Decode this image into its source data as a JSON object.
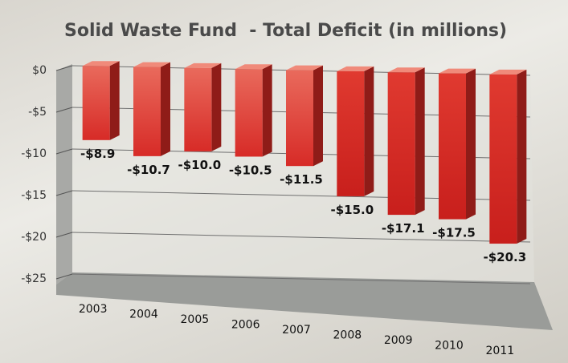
{
  "chart_data": {
    "type": "bar",
    "title": "Solid Waste Fund  - Total Deficit (in millions)",
    "categories": [
      "2003",
      "2004",
      "2005",
      "2006",
      "2007",
      "2008",
      "2009",
      "2010",
      "2011"
    ],
    "values": [
      -8.9,
      -10.7,
      -10.0,
      -10.5,
      -11.5,
      -15.0,
      -17.1,
      -17.5,
      -20.3
    ],
    "data_labels": [
      "-$8.9",
      "-$10.7",
      "-$10.0",
      "-$10.5",
      "-$11.5",
      "-$15.0",
      "-$17.1",
      "-$17.5",
      "-$20.3"
    ],
    "y_ticks": [
      0,
      -5,
      -10,
      -15,
      -20,
      -25
    ],
    "y_tick_labels": [
      "$0",
      "-$5",
      "-$10",
      "-$15",
      "-$20",
      "-$25"
    ],
    "ylim": [
      -25,
      0
    ],
    "xlabel": "",
    "ylabel": "",
    "grid": true,
    "style": "3d-column",
    "colors": {
      "bar_light": "#e96a5c",
      "bar_dark": "#d72b27",
      "bar_top": "#f08a7a",
      "bar_side": "#8f1c18"
    }
  }
}
